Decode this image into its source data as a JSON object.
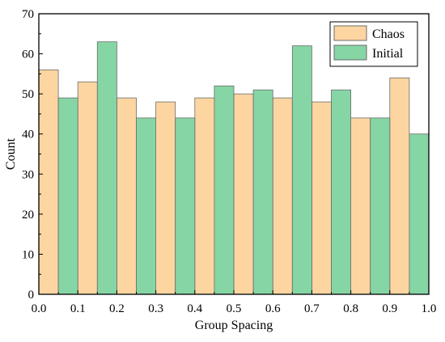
{
  "chart_data": {
    "type": "bar",
    "xlabel": "Group Spacing",
    "ylabel": "Count",
    "xlim": [
      0.0,
      1.0
    ],
    "ylim": [
      0,
      70
    ],
    "xticks": [
      "0.0",
      "0.1",
      "0.2",
      "0.3",
      "0.4",
      "0.5",
      "0.6",
      "0.7",
      "0.8",
      "0.9",
      "1.0"
    ],
    "yticks": [
      "0",
      "10",
      "20",
      "30",
      "40",
      "50",
      "60",
      "70"
    ],
    "grid": false,
    "legend_position": "top-right",
    "bins": [
      [
        0.0,
        0.05
      ],
      [
        0.1,
        0.15
      ],
      [
        0.2,
        0.25
      ],
      [
        0.3,
        0.35
      ],
      [
        0.4,
        0.45
      ],
      [
        0.5,
        0.55
      ],
      [
        0.6,
        0.65
      ],
      [
        0.7,
        0.75
      ],
      [
        0.8,
        0.85
      ],
      [
        0.9,
        0.95
      ]
    ],
    "series": [
      {
        "name": "Chaos",
        "color": "#FDD5A1",
        "edge_color": "#6b6b6b",
        "x_start": [
          0.0,
          0.1,
          0.2,
          0.3,
          0.4,
          0.5,
          0.6,
          0.7,
          0.8,
          0.9
        ],
        "values": [
          56,
          53,
          49,
          48,
          49,
          50,
          49,
          48,
          44,
          54
        ]
      },
      {
        "name": "Initial",
        "color": "#86D5A4",
        "edge_color": "#6b6b6b",
        "x_start": [
          0.05,
          0.15,
          0.25,
          0.35,
          0.45,
          0.55,
          0.65,
          0.75,
          0.85,
          0.95
        ],
        "values": [
          49,
          63,
          44,
          44,
          52,
          51,
          62,
          51,
          44,
          40
        ]
      }
    ]
  }
}
